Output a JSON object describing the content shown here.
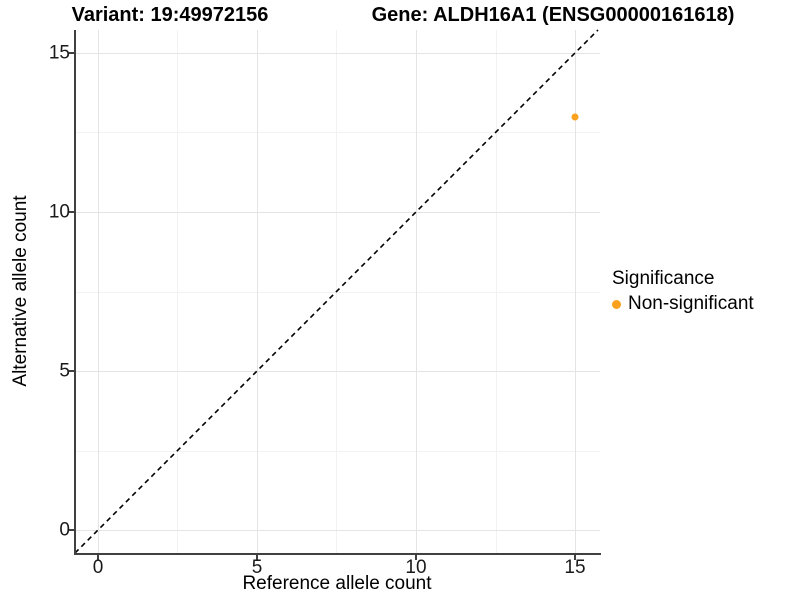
{
  "chart_data": {
    "type": "scatter",
    "title_left": "Variant: 19:49972156",
    "title_right": "Gene: ALDH16A1 (ENSG00000161618)",
    "xlabel": "Reference allele count",
    "ylabel": "Alternative allele count",
    "x_ticks": [
      0,
      5,
      10,
      15
    ],
    "y_ticks": [
      0,
      5,
      10,
      15
    ],
    "x_minor": [
      2.5,
      7.5,
      12.5
    ],
    "y_minor": [
      2.5,
      7.5,
      12.5
    ],
    "xlim": [
      -0.723,
      15.786
    ],
    "ylim": [
      -0.723,
      15.723
    ],
    "grid": "major+minor",
    "legend_position": "right",
    "series": [
      {
        "name": "Non-significant",
        "color": "#FAA21E",
        "points": [
          {
            "x": 15,
            "y": 13
          }
        ]
      }
    ],
    "reference_line": {
      "slope": 1,
      "intercept": 0,
      "style": "dashed",
      "color": "#000000"
    }
  },
  "legend": {
    "title": "Significance",
    "items": [
      {
        "label": "Non-significant",
        "color": "#FAA21E"
      }
    ]
  },
  "colors": {
    "point_orange": "#FAA21E",
    "axis_line": "#404040",
    "grid_major": "#e4e4e4",
    "grid_minor": "#f2f2f2"
  }
}
